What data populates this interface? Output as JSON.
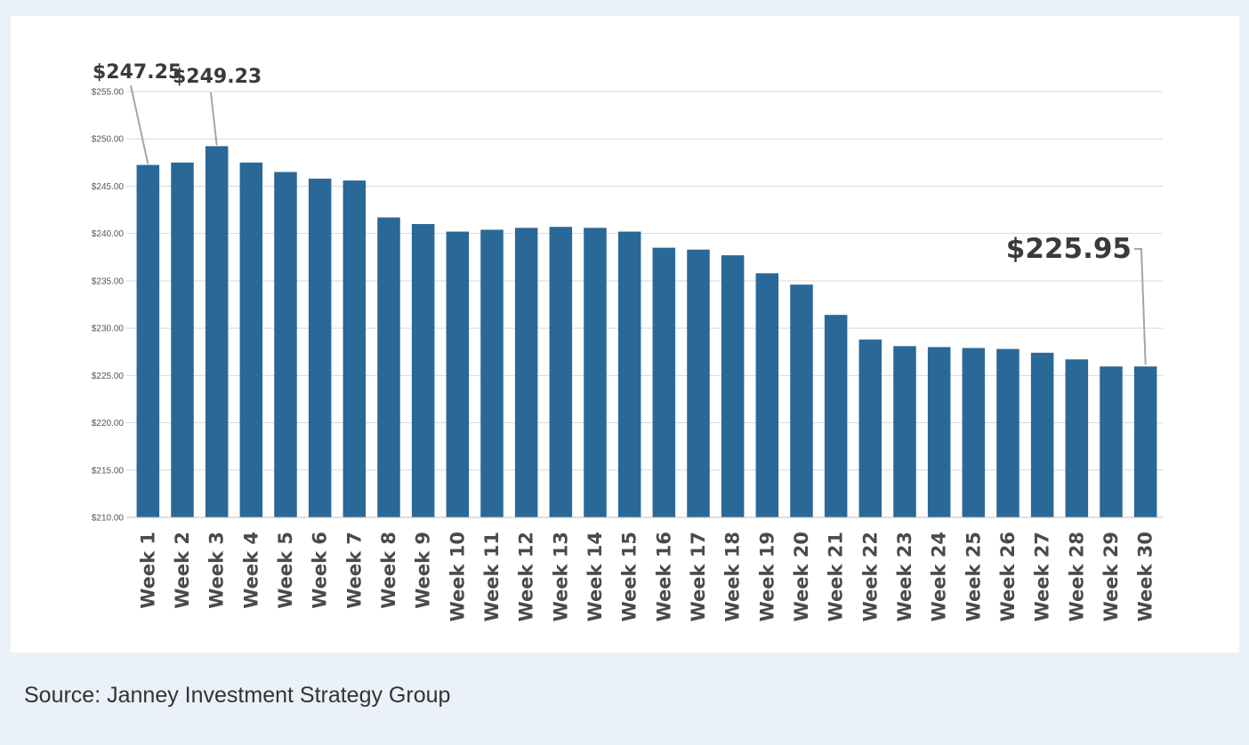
{
  "caption": {
    "source": "Source: Janney Investment Strategy Group"
  },
  "colors": {
    "bar": "#2a6898",
    "grid": "#d9d9d9",
    "leader": "#a6a6a6",
    "background": "#eaf1f8"
  },
  "chart_data": {
    "type": "bar",
    "title": "",
    "xlabel": "",
    "ylabel": "",
    "categories": [
      "Week 1",
      "Week 2",
      "Week 3",
      "Week 4",
      "Week 5",
      "Week 6",
      "Week 7",
      "Week 8",
      "Week 9",
      "Week 10",
      "Week 11",
      "Week 12",
      "Week 13",
      "Week 14",
      "Week 15",
      "Week 16",
      "Week 17",
      "Week 18",
      "Week 19",
      "Week 20",
      "Week 21",
      "Week 22",
      "Week 23",
      "Week 24",
      "Week 25",
      "Week 26",
      "Week 27",
      "Week 28",
      "Week 29",
      "Week 30"
    ],
    "values": [
      247.25,
      247.5,
      249.23,
      247.5,
      246.5,
      245.8,
      245.6,
      241.7,
      241.0,
      240.2,
      240.4,
      240.6,
      240.7,
      240.6,
      240.2,
      238.5,
      238.3,
      237.7,
      235.8,
      234.6,
      231.4,
      228.8,
      228.1,
      228.0,
      227.9,
      227.8,
      227.4,
      226.7,
      225.95,
      225.95
    ],
    "ylim": [
      210,
      255
    ],
    "yticks": [
      210,
      215,
      220,
      225,
      230,
      235,
      240,
      245,
      250,
      255
    ],
    "ytick_labels": [
      "$210.00",
      "$215.00",
      "$220.00",
      "$225.00",
      "$230.00",
      "$235.00",
      "$240.00",
      "$245.00",
      "$250.00",
      "$255.00"
    ],
    "grid": true,
    "legend": "none",
    "annotations": [
      {
        "category": "Week 1",
        "text": "$247.25",
        "size": "medium"
      },
      {
        "category": "Week 3",
        "text": "$249.23",
        "size": "medium"
      },
      {
        "category": "Week 30",
        "text": "$225.95",
        "size": "large"
      }
    ]
  }
}
